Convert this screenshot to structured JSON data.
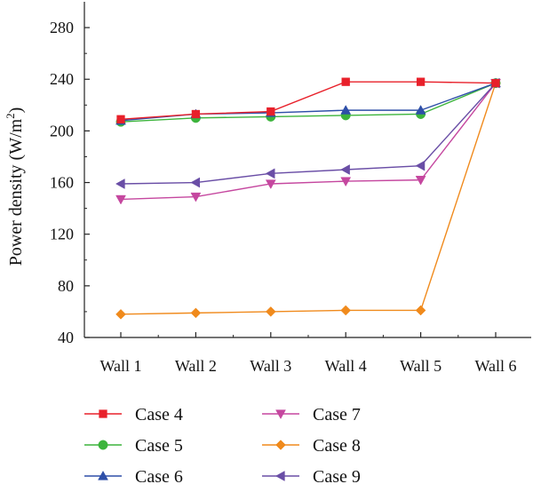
{
  "chart_data": {
    "type": "line",
    "categories": [
      "Wall 1",
      "Wall 2",
      "Wall 3",
      "Wall 4",
      "Wall 5",
      "Wall 6"
    ],
    "ylabel": "Power density (W/m",
    "ylabel_sup": "2",
    "ylabel_close": ")",
    "ylim": [
      40,
      300
    ],
    "yticks": [
      40,
      80,
      120,
      160,
      200,
      240,
      280
    ],
    "grid": false,
    "legend_position": "bottom",
    "series": [
      {
        "name": "Case 4",
        "color": "#e8202a",
        "marker": "square",
        "values": [
          209,
          213,
          215,
          238,
          238,
          237
        ]
      },
      {
        "name": "Case 5",
        "color": "#3cb43c",
        "marker": "circle",
        "values": [
          207,
          210,
          211,
          212,
          213,
          237
        ]
      },
      {
        "name": "Case 6",
        "color": "#2e4fa8",
        "marker": "triangle-up",
        "values": [
          208,
          213,
          214,
          216,
          216,
          237
        ]
      },
      {
        "name": "Case 7",
        "color": "#c5479f",
        "marker": "triangle-down",
        "values": [
          147,
          149,
          159,
          161,
          162,
          237
        ]
      },
      {
        "name": "Case 8",
        "color": "#f08a1c",
        "marker": "diamond",
        "values": [
          58,
          59,
          60,
          61,
          61,
          237
        ]
      },
      {
        "name": "Case 9",
        "color": "#6a4ea6",
        "marker": "triangle-left",
        "values": [
          159,
          160,
          167,
          170,
          173,
          237
        ]
      }
    ]
  }
}
